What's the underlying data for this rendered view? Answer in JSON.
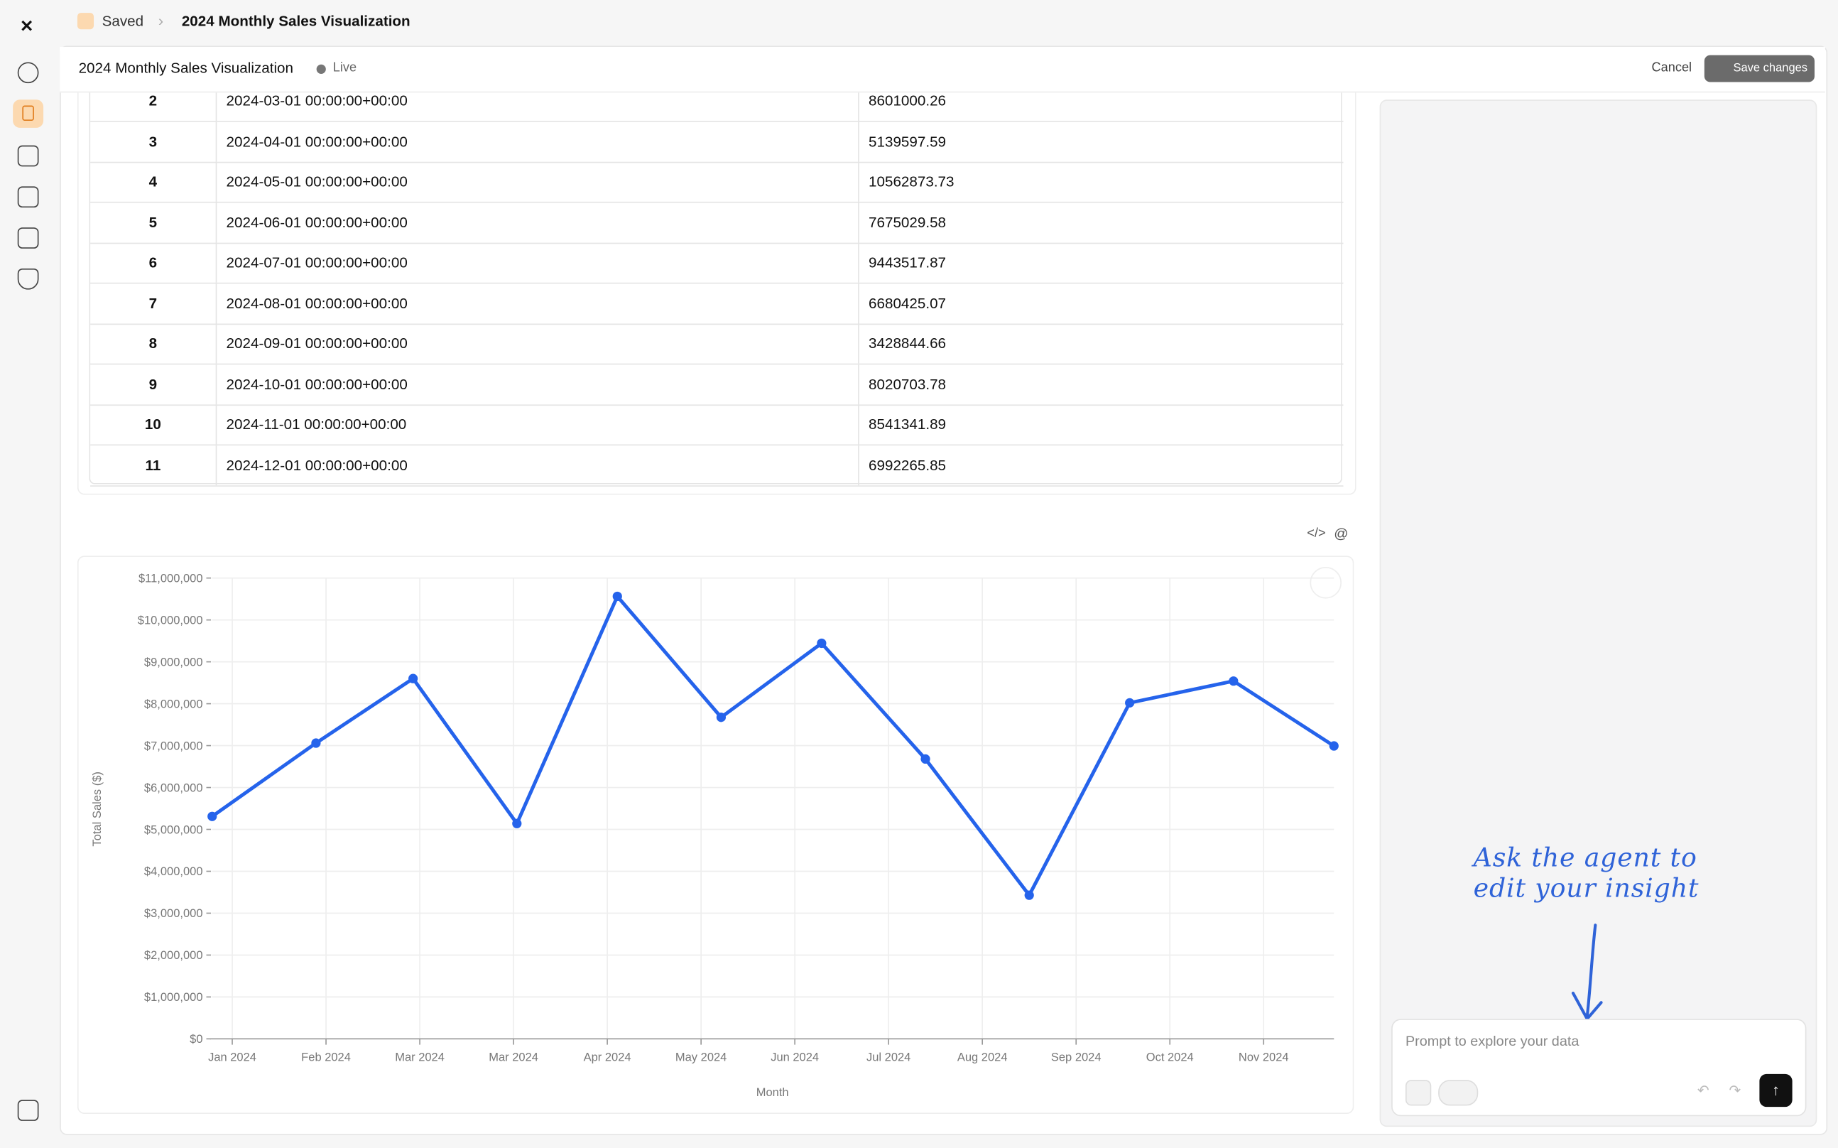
{
  "breadcrumb": {
    "parent": "Saved",
    "current": "2024 Monthly Sales Visualization"
  },
  "header": {
    "title": "2024 Monthly Sales Visualization",
    "status": "Live",
    "cancel": "Cancel",
    "save": "Save changes"
  },
  "table": {
    "rows": [
      [
        "2",
        "2024-03-01 00:00:00+00:00",
        "8601000.26"
      ],
      [
        "3",
        "2024-04-01 00:00:00+00:00",
        "5139597.59"
      ],
      [
        "4",
        "2024-05-01 00:00:00+00:00",
        "10562873.73"
      ],
      [
        "5",
        "2024-06-01 00:00:00+00:00",
        "7675029.58"
      ],
      [
        "6",
        "2024-07-01 00:00:00+00:00",
        "9443517.87"
      ],
      [
        "7",
        "2024-08-01 00:00:00+00:00",
        "6680425.07"
      ],
      [
        "8",
        "2024-09-01 00:00:00+00:00",
        "3428844.66"
      ],
      [
        "9",
        "2024-10-01 00:00:00+00:00",
        "8020703.78"
      ],
      [
        "10",
        "2024-11-01 00:00:00+00:00",
        "8541341.89"
      ],
      [
        "11",
        "2024-12-01 00:00:00+00:00",
        "6992265.85"
      ]
    ]
  },
  "chart_data": {
    "type": "line",
    "x_label": "Month",
    "y_label": "Total Sales ($)",
    "color": "#2563eb",
    "x": [
      "2024-01-01",
      "2024-02-01",
      "2024-03-01",
      "2024-04-01",
      "2024-05-01",
      "2024-06-01",
      "2024-07-01",
      "2024-08-01",
      "2024-09-01",
      "2024-10-01",
      "2024-11-01",
      "2024-12-01"
    ],
    "values": [
      5310000,
      7060000,
      8601000.26,
      5139597.59,
      10562873.73,
      7675029.58,
      9443517.87,
      6680425.07,
      3428844.66,
      8020703.78,
      8541341.89,
      6992265.85
    ],
    "xlim": [
      "2024-01-01",
      "2024-12-01"
    ],
    "xticks": [
      {
        "value": "2024-01-07",
        "label": "Jan 2024"
      },
      {
        "value": "2024-02-04",
        "label": "Feb 2024"
      },
      {
        "value": "2024-03-03",
        "label": "Mar 2024"
      },
      {
        "value": "2024-03-31",
        "label": "Mar 2024"
      },
      {
        "value": "2024-04-28",
        "label": "Apr 2024"
      },
      {
        "value": "2024-05-26",
        "label": "May 2024"
      },
      {
        "value": "2024-06-23",
        "label": "Jun 2024"
      },
      {
        "value": "2024-07-21",
        "label": "Jul 2024"
      },
      {
        "value": "2024-08-18",
        "label": "Aug 2024"
      },
      {
        "value": "2024-09-15",
        "label": "Sep 2024"
      },
      {
        "value": "2024-10-13",
        "label": "Oct 2024"
      },
      {
        "value": "2024-11-10",
        "label": "Nov 2024"
      }
    ],
    "ylim": [
      0,
      11000000
    ],
    "yticks": [
      {
        "value": 0,
        "label": "$0"
      },
      {
        "value": 1000000,
        "label": "$1,000,000"
      },
      {
        "value": 2000000,
        "label": "$2,000,000"
      },
      {
        "value": 3000000,
        "label": "$3,000,000"
      },
      {
        "value": 4000000,
        "label": "$4,000,000"
      },
      {
        "value": 5000000,
        "label": "$5,000,000"
      },
      {
        "value": 6000000,
        "label": "$6,000,000"
      },
      {
        "value": 7000000,
        "label": "$7,000,000"
      },
      {
        "value": 8000000,
        "label": "$8,000,000"
      },
      {
        "value": 9000000,
        "label": "$9,000,000"
      },
      {
        "value": 10000000,
        "label": "$10,000,000"
      },
      {
        "value": 11000000,
        "label": "$11,000,000"
      }
    ],
    "grid": true
  },
  "assistant": {
    "annotation": [
      "Ask the agent to",
      "edit your insight"
    ],
    "prompt_placeholder": "Prompt to explore your data"
  }
}
